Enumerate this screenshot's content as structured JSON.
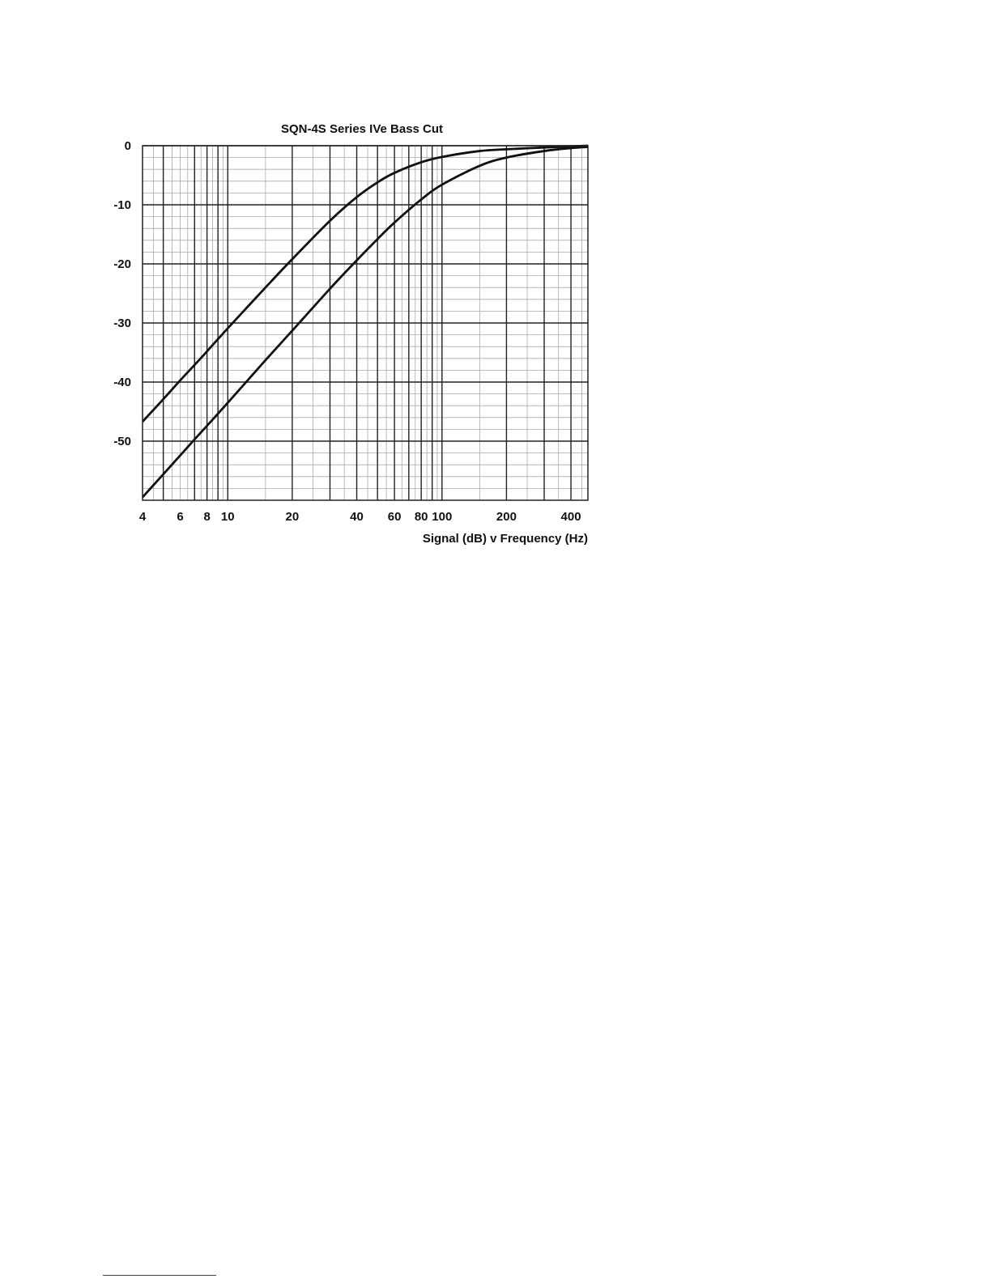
{
  "chart_data": {
    "type": "line",
    "title": "SQN-4S Series IVe Bass Cut",
    "xlabel": "Signal (dB) v Frequency (Hz)",
    "ylabel": "",
    "x_scale": "log",
    "xlim": [
      4,
      480
    ],
    "ylim": [
      -60,
      0
    ],
    "x_tick_labels": [
      "4",
      "6",
      "8",
      "10",
      "20",
      "40",
      "60",
      "80",
      "100",
      "200",
      "400"
    ],
    "x_tick_values": [
      4,
      6,
      8,
      10,
      20,
      40,
      60,
      80,
      100,
      200,
      400
    ],
    "y_tick_labels": [
      "0",
      "-10",
      "-20",
      "-30",
      "-40",
      "-50"
    ],
    "y_tick_values": [
      0,
      -10,
      -20,
      -30,
      -40,
      -50
    ],
    "grid": true,
    "line_color": "#111111",
    "grid_color": "#222222",
    "minor_grid_color": "#aaaaaa",
    "series": [
      {
        "x": [
          4,
          5,
          6,
          7,
          8,
          10,
          15,
          20,
          30,
          40,
          50,
          60,
          80,
          100,
          150,
          200,
          300,
          400,
          480
        ],
        "values": [
          -46.7,
          -42.9,
          -39.7,
          -37.1,
          -34.8,
          -30.9,
          -24.0,
          -19.2,
          -12.7,
          -8.7,
          -6.2,
          -4.6,
          -2.8,
          -1.9,
          -0.9,
          -0.6,
          -0.3,
          -0.1,
          0
        ]
      },
      {
        "x": [
          4,
          5,
          6,
          7,
          8,
          10,
          15,
          20,
          30,
          40,
          50,
          60,
          80,
          100,
          150,
          200,
          300,
          400,
          480
        ],
        "values": [
          -59.5,
          -55.6,
          -52.4,
          -49.7,
          -47.4,
          -43.5,
          -36.3,
          -31.3,
          -24.2,
          -19.4,
          -15.8,
          -13.0,
          -9.1,
          -6.6,
          -3.4,
          -2.0,
          -0.9,
          -0.4,
          -0.2
        ]
      }
    ]
  }
}
